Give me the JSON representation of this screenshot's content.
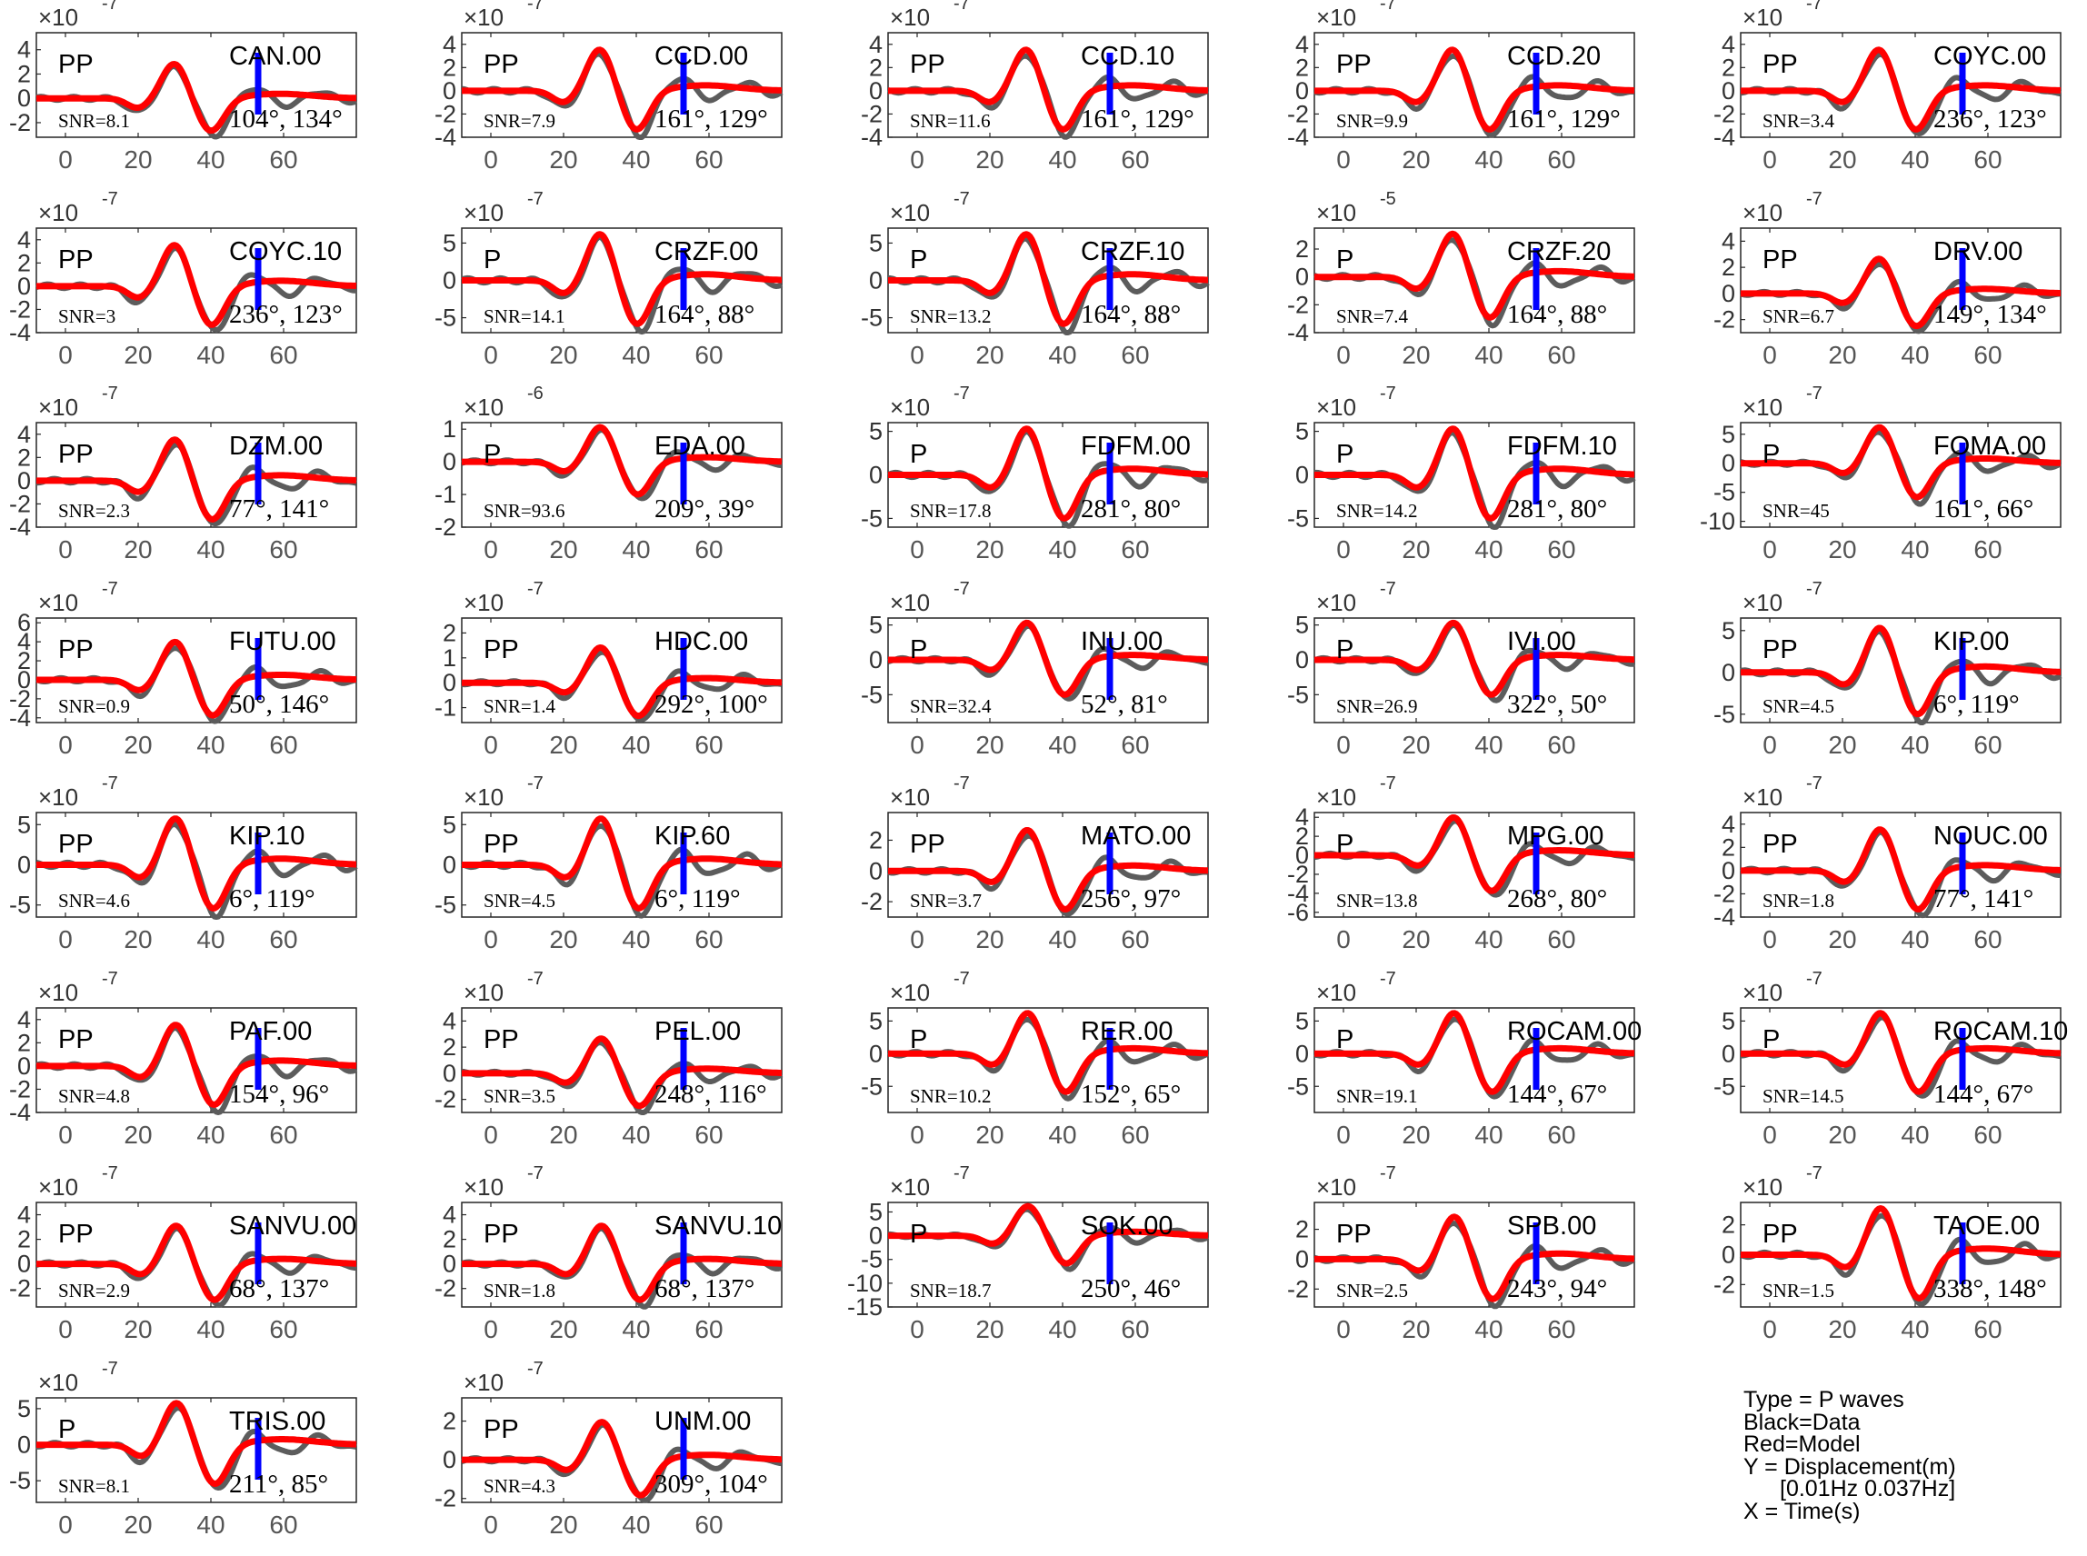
{
  "figure": {
    "legend": {
      "type_line": "Type = P waves",
      "black_line": "Black=Data",
      "red_line": "Red=Model",
      "y_line": "Y = Displacement(m)",
      "band_line": "[0.01Hz 0.037Hz]",
      "x_line": "X = Time(s)"
    },
    "colors": {
      "data": "#5c5c5c",
      "model": "#ff0000",
      "marker": "#0000ff"
    },
    "x_ticks": [
      0,
      20,
      40,
      60
    ]
  },
  "chart_data": [
    {
      "type": "line",
      "station": "CAN.00",
      "phase": "PP",
      "snr": "SNR=8.1",
      "azimuth_label": "104°, 134°",
      "exponent": "-7",
      "yticks": [
        -2,
        0,
        2,
        4
      ],
      "ylim": [
        -3.2,
        5.4
      ],
      "xlim": [
        -8,
        80
      ]
    },
    {
      "type": "line",
      "station": "CCD.00",
      "phase": "PP",
      "snr": "SNR=7.9",
      "azimuth_label": "161°, 129°",
      "exponent": "-7",
      "yticks": [
        -4,
        -2,
        0,
        2,
        4
      ],
      "ylim": [
        -4,
        5
      ],
      "xlim": [
        -8,
        80
      ]
    },
    {
      "type": "line",
      "station": "CCD.10",
      "phase": "PP",
      "snr": "SNR=11.6",
      "azimuth_label": "161°, 129°",
      "exponent": "-7",
      "yticks": [
        -4,
        -2,
        0,
        2,
        4
      ],
      "ylim": [
        -4,
        5
      ],
      "xlim": [
        -8,
        80
      ]
    },
    {
      "type": "line",
      "station": "CCD.20",
      "phase": "PP",
      "snr": "SNR=9.9",
      "azimuth_label": "161°, 129°",
      "exponent": "-7",
      "yticks": [
        -4,
        -2,
        0,
        2,
        4
      ],
      "ylim": [
        -4,
        5
      ],
      "xlim": [
        -8,
        80
      ]
    },
    {
      "type": "line",
      "station": "COYC.00",
      "phase": "PP",
      "snr": "SNR=3.4",
      "azimuth_label": "236°, 123°",
      "exponent": "-7",
      "yticks": [
        -4,
        -2,
        0,
        2,
        4
      ],
      "ylim": [
        -4,
        5
      ],
      "xlim": [
        -8,
        80
      ]
    },
    {
      "type": "line",
      "station": "COYC.10",
      "phase": "PP",
      "snr": "SNR=3",
      "azimuth_label": "236°, 123°",
      "exponent": "-7",
      "yticks": [
        -4,
        -2,
        0,
        2,
        4
      ],
      "ylim": [
        -4,
        5
      ],
      "xlim": [
        -8,
        80
      ]
    },
    {
      "type": "line",
      "station": "CRZF.00",
      "phase": "P",
      "snr": "SNR=14.1",
      "azimuth_label": "164°, 88°",
      "exponent": "-7",
      "yticks": [
        -5,
        0,
        5
      ],
      "ylim": [
        -7,
        7
      ],
      "xlim": [
        -8,
        80
      ]
    },
    {
      "type": "line",
      "station": "CRZF.10",
      "phase": "P",
      "snr": "SNR=13.2",
      "azimuth_label": "164°, 88°",
      "exponent": "-7",
      "yticks": [
        -5,
        0,
        5
      ],
      "ylim": [
        -7,
        7
      ],
      "xlim": [
        -8,
        80
      ]
    },
    {
      "type": "line",
      "station": "CRZF.20",
      "phase": "P",
      "snr": "SNR=7.4",
      "azimuth_label": "164°, 88°",
      "exponent": "-5",
      "yticks": [
        -4,
        -2,
        0,
        2
      ],
      "ylim": [
        -4,
        3.5
      ],
      "xlim": [
        -8,
        80
      ]
    },
    {
      "type": "line",
      "station": "DRV.00",
      "phase": "PP",
      "snr": "SNR=6.7",
      "azimuth_label": "149°, 134°",
      "exponent": "-7",
      "yticks": [
        -2,
        0,
        2,
        4
      ],
      "ylim": [
        -3,
        5
      ],
      "xlim": [
        -8,
        80
      ]
    },
    {
      "type": "line",
      "station": "DZM.00",
      "phase": "PP",
      "snr": "SNR=2.3",
      "azimuth_label": "77°, 141°",
      "exponent": "-7",
      "yticks": [
        -4,
        -2,
        0,
        2,
        4
      ],
      "ylim": [
        -4,
        5
      ],
      "xlim": [
        -8,
        80
      ]
    },
    {
      "type": "line",
      "station": "EDA.00",
      "phase": "P",
      "snr": "SNR=93.6",
      "azimuth_label": "209°, 39°",
      "exponent": "-6",
      "yticks": [
        -2,
        -1,
        0,
        1
      ],
      "ylim": [
        -2,
        1.2
      ],
      "xlim": [
        -8,
        80
      ]
    },
    {
      "type": "line",
      "station": "FDFM.00",
      "phase": "P",
      "snr": "SNR=17.8",
      "azimuth_label": "281°, 80°",
      "exponent": "-7",
      "yticks": [
        -5,
        0,
        5
      ],
      "ylim": [
        -6,
        6
      ],
      "xlim": [
        -8,
        80
      ]
    },
    {
      "type": "line",
      "station": "FDFM.10",
      "phase": "P",
      "snr": "SNR=14.2",
      "azimuth_label": "281°, 80°",
      "exponent": "-7",
      "yticks": [
        -5,
        0,
        5
      ],
      "ylim": [
        -6,
        6
      ],
      "xlim": [
        -8,
        80
      ]
    },
    {
      "type": "line",
      "station": "FOMA.00",
      "phase": "P",
      "snr": "SNR=45",
      "azimuth_label": "161°, 66°",
      "exponent": "-7",
      "yticks": [
        -10,
        -5,
        0,
        5
      ],
      "ylim": [
        -11,
        7
      ],
      "xlim": [
        -8,
        80
      ]
    },
    {
      "type": "line",
      "station": "FUTU.00",
      "phase": "PP",
      "snr": "SNR=0.9",
      "azimuth_label": "50°, 146°",
      "exponent": "-7",
      "yticks": [
        -4,
        -2,
        0,
        2,
        4,
        6
      ],
      "ylim": [
        -4.5,
        6.5
      ],
      "xlim": [
        -8,
        80
      ]
    },
    {
      "type": "line",
      "station": "HDC.00",
      "phase": "PP",
      "snr": "SNR=1.4",
      "azimuth_label": "292°, 100°",
      "exponent": "-7",
      "yticks": [
        -1,
        0,
        1,
        2
      ],
      "ylim": [
        -1.6,
        2.6
      ],
      "xlim": [
        -8,
        80
      ]
    },
    {
      "type": "line",
      "station": "INU.00",
      "phase": "P",
      "snr": "SNR=32.4",
      "azimuth_label": "52°, 81°",
      "exponent": "-7",
      "yticks": [
        -5,
        0,
        5
      ],
      "ylim": [
        -9,
        6
      ],
      "xlim": [
        -8,
        80
      ]
    },
    {
      "type": "line",
      "station": "IVI.00",
      "phase": "P",
      "snr": "SNR=26.9",
      "azimuth_label": "322°, 50°",
      "exponent": "-7",
      "yticks": [
        -5,
        0,
        5
      ],
      "ylim": [
        -9,
        6
      ],
      "xlim": [
        -8,
        80
      ]
    },
    {
      "type": "line",
      "station": "KIP.00",
      "phase": "PP",
      "snr": "SNR=4.5",
      "azimuth_label": "6°, 119°",
      "exponent": "-7",
      "yticks": [
        -5,
        0,
        5
      ],
      "ylim": [
        -6,
        6.5
      ],
      "xlim": [
        -8,
        80
      ]
    },
    {
      "type": "line",
      "station": "KIP.10",
      "phase": "PP",
      "snr": "SNR=4.6",
      "azimuth_label": "6°, 119°",
      "exponent": "-7",
      "yticks": [
        -5,
        0,
        5
      ],
      "ylim": [
        -6.5,
        6.5
      ],
      "xlim": [
        -8,
        80
      ]
    },
    {
      "type": "line",
      "station": "KIP.60",
      "phase": "PP",
      "snr": "SNR=4.5",
      "azimuth_label": "6°, 119°",
      "exponent": "-7",
      "yticks": [
        -5,
        0,
        5
      ],
      "ylim": [
        -6.5,
        6.5
      ],
      "xlim": [
        -8,
        80
      ]
    },
    {
      "type": "line",
      "station": "MATO.00",
      "phase": "PP",
      "snr": "SNR=3.7",
      "azimuth_label": "256°, 97°",
      "exponent": "-7",
      "yticks": [
        -2,
        0,
        2
      ],
      "ylim": [
        -3,
        3.8
      ],
      "xlim": [
        -8,
        80
      ]
    },
    {
      "type": "line",
      "station": "MPG.00",
      "phase": "P",
      "snr": "SNR=13.8",
      "azimuth_label": "268°, 80°",
      "exponent": "-7",
      "yticks": [
        -6,
        -4,
        -2,
        0,
        2,
        4
      ],
      "ylim": [
        -6.5,
        4.5
      ],
      "xlim": [
        -8,
        80
      ]
    },
    {
      "type": "line",
      "station": "NOUC.00",
      "phase": "PP",
      "snr": "SNR=1.8",
      "azimuth_label": "77°, 141°",
      "exponent": "-7",
      "yticks": [
        -4,
        -2,
        0,
        2,
        4
      ],
      "ylim": [
        -4,
        5
      ],
      "xlim": [
        -8,
        80
      ]
    },
    {
      "type": "line",
      "station": "PAF.00",
      "phase": "PP",
      "snr": "SNR=4.8",
      "azimuth_label": "154°, 96°",
      "exponent": "-7",
      "yticks": [
        -4,
        -2,
        0,
        2,
        4
      ],
      "ylim": [
        -4,
        5
      ],
      "xlim": [
        -8,
        80
      ]
    },
    {
      "type": "line",
      "station": "PEL.00",
      "phase": "PP",
      "snr": "SNR=3.5",
      "azimuth_label": "248°, 116°",
      "exponent": "-7",
      "yticks": [
        -2,
        0,
        2,
        4
      ],
      "ylim": [
        -3,
        5
      ],
      "xlim": [
        -8,
        80
      ]
    },
    {
      "type": "line",
      "station": "RER.00",
      "phase": "P",
      "snr": "SNR=10.2",
      "azimuth_label": "152°, 65°",
      "exponent": "-7",
      "yticks": [
        -5,
        0,
        5
      ],
      "ylim": [
        -9,
        7
      ],
      "xlim": [
        -8,
        80
      ]
    },
    {
      "type": "line",
      "station": "ROCAM.00",
      "phase": "P",
      "snr": "SNR=19.1",
      "azimuth_label": "144°, 67°",
      "exponent": "-7",
      "yticks": [
        -5,
        0,
        5
      ],
      "ylim": [
        -9,
        7
      ],
      "xlim": [
        -8,
        80
      ]
    },
    {
      "type": "line",
      "station": "ROCAM.10",
      "phase": "P",
      "snr": "SNR=14.5",
      "azimuth_label": "144°, 67°",
      "exponent": "-7",
      "yticks": [
        -5,
        0,
        5
      ],
      "ylim": [
        -9,
        7
      ],
      "xlim": [
        -8,
        80
      ]
    },
    {
      "type": "line",
      "station": "SANVU.00",
      "phase": "PP",
      "snr": "SNR=2.9",
      "azimuth_label": "68°, 137°",
      "exponent": "-7",
      "yticks": [
        -2,
        0,
        2,
        4
      ],
      "ylim": [
        -3.5,
        5
      ],
      "xlim": [
        -8,
        80
      ]
    },
    {
      "type": "line",
      "station": "SANVU.10",
      "phase": "PP",
      "snr": "SNR=1.8",
      "azimuth_label": "68°, 137°",
      "exponent": "-7",
      "yticks": [
        -2,
        0,
        2,
        4
      ],
      "ylim": [
        -3.5,
        5
      ],
      "xlim": [
        -8,
        80
      ]
    },
    {
      "type": "line",
      "station": "SOK.00",
      "phase": "P",
      "snr": "SNR=18.7",
      "azimuth_label": "250°, 46°",
      "exponent": "-7",
      "yticks": [
        -15,
        -10,
        -5,
        0,
        5
      ],
      "ylim": [
        -15,
        7
      ],
      "xlim": [
        -8,
        80
      ]
    },
    {
      "type": "line",
      "station": "SPB.00",
      "phase": "PP",
      "snr": "SNR=2.5",
      "azimuth_label": "243°, 94°",
      "exponent": "-7",
      "yticks": [
        -2,
        0,
        2
      ],
      "ylim": [
        -3.2,
        3.8
      ],
      "xlim": [
        -8,
        80
      ]
    },
    {
      "type": "line",
      "station": "TAOE.00",
      "phase": "PP",
      "snr": "SNR=1.5",
      "azimuth_label": "338°, 148°",
      "exponent": "-7",
      "yticks": [
        -2,
        0,
        2
      ],
      "ylim": [
        -3.5,
        3.5
      ],
      "xlim": [
        -8,
        80
      ]
    },
    {
      "type": "line",
      "station": "TRIS.00",
      "phase": "P",
      "snr": "SNR=8.1",
      "azimuth_label": "211°, 85°",
      "exponent": "-7",
      "yticks": [
        -5,
        0,
        5
      ],
      "ylim": [
        -8,
        6.5
      ],
      "xlim": [
        -8,
        80
      ]
    },
    {
      "type": "line",
      "station": "UNM.00",
      "phase": "PP",
      "snr": "SNR=4.3",
      "azimuth_label": "309°, 104°",
      "exponent": "-7",
      "yticks": [
        -2,
        0,
        2
      ],
      "ylim": [
        -2.2,
        3.2
      ],
      "xlim": [
        -8,
        80
      ]
    }
  ]
}
